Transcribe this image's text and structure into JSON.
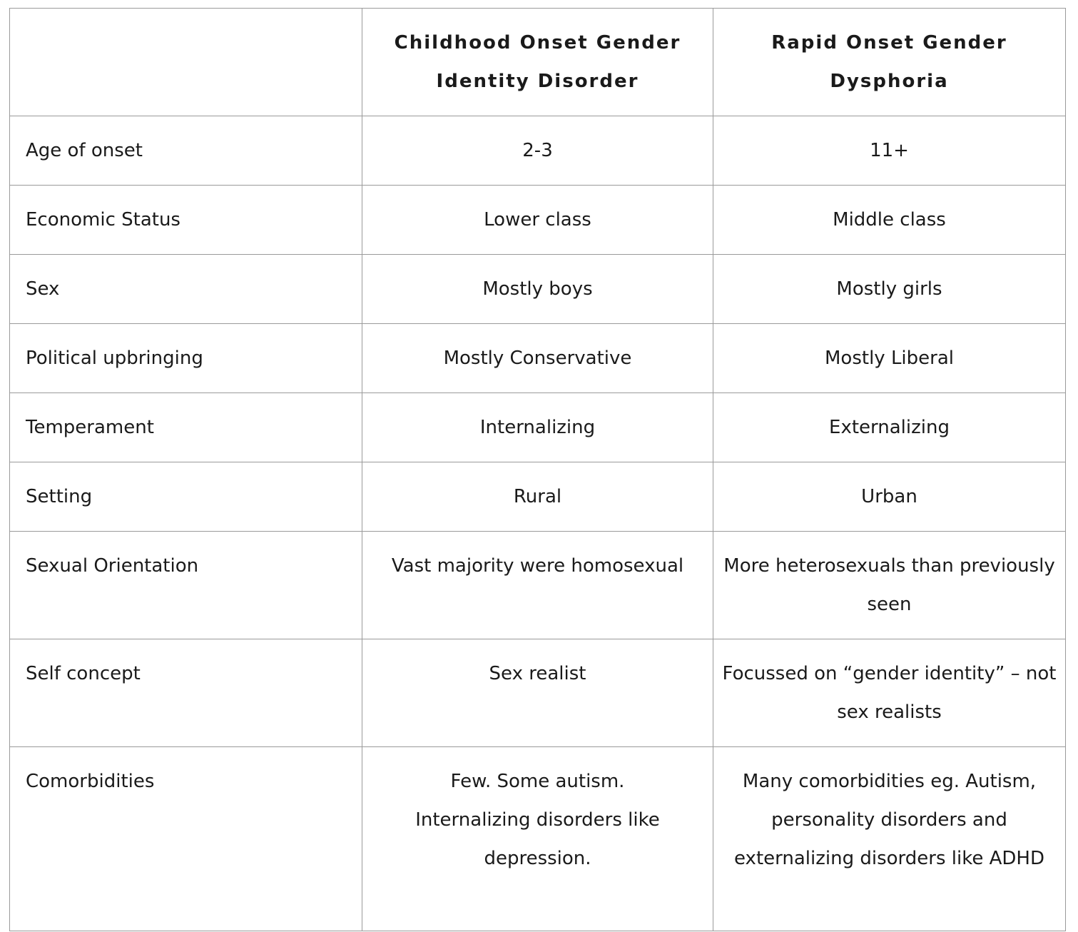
{
  "table": {
    "header": [
      "Childhood Onset Gender Identity Disorder",
      "Rapid Onset Gender Dysphoria"
    ],
    "rows": [
      [
        "Age of onset",
        "2-3",
        "11+"
      ],
      [
        "Economic Status",
        "Lower class",
        "Middle class"
      ],
      [
        "Sex",
        "Mostly boys",
        "Mostly girls"
      ],
      [
        "Political upbringing",
        "Mostly Conservative",
        "Mostly Liberal"
      ],
      [
        "Temperament",
        "Internalizing",
        "Externalizing"
      ],
      [
        "Setting",
        "Rural",
        "Urban"
      ],
      [
        "Sexual Orientation",
        "Vast majority were homosexual",
        "More heterosexuals than previously seen"
      ],
      [
        "Self concept",
        "Sex realist",
        "Focussed on “gender identity” – not sex realists"
      ],
      [
        "Comorbidities",
        "Few. Some autism. Internalizing disorders like depression.",
        "Many comorbidities eg. Autism, personality disorders and externalizing disorders like ADHD"
      ]
    ]
  }
}
